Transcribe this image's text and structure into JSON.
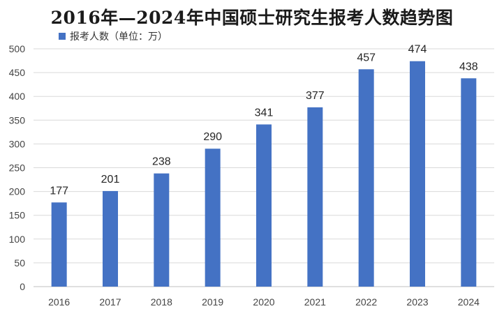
{
  "chart_data": {
    "type": "bar",
    "title": "2016年—2024年中国硕士研究生报考人数趋势图",
    "categories": [
      "2016",
      "2017",
      "2018",
      "2019",
      "2020",
      "2021",
      "2022",
      "2023",
      "2024"
    ],
    "series": [
      {
        "name": "报考人数（单位：万）",
        "values": [
          177,
          201,
          238,
          290,
          341,
          377,
          457,
          474,
          438
        ],
        "color": "#4472C4"
      }
    ],
    "ylim": [
      0,
      500
    ],
    "yticks": [
      0,
      50,
      100,
      150,
      200,
      250,
      300,
      350,
      400,
      450,
      500
    ],
    "grid": true,
    "legend_position": "top-left",
    "data_labels": true
  }
}
